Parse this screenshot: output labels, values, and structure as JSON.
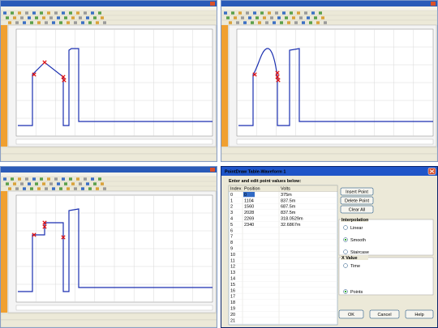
{
  "dialog": {
    "title": "PointDraw Table-Waveform 1",
    "instruction": "Enter and edit point values below:",
    "table": {
      "columns": [
        "Index",
        "Position",
        "Volts"
      ],
      "rows": [
        [
          "0",
          "0",
          "375m"
        ],
        [
          "1",
          "1104",
          "837.5m"
        ],
        [
          "2",
          "1560",
          "687.5m"
        ],
        [
          "3",
          "2028",
          "837.5m"
        ],
        [
          "4",
          "2269",
          "318.0529m"
        ],
        [
          "5",
          "2340",
          "32.6867m"
        ],
        [
          "6"
        ],
        [
          "7"
        ],
        [
          "8"
        ],
        [
          "9"
        ],
        [
          "10"
        ],
        [
          "11"
        ],
        [
          "12"
        ],
        [
          "13"
        ],
        [
          "14"
        ],
        [
          "15"
        ],
        [
          "16"
        ],
        [
          "17"
        ],
        [
          "18"
        ],
        [
          "19"
        ],
        [
          "20"
        ],
        [
          "21"
        ]
      ],
      "selected_cell": [
        0,
        1
      ]
    },
    "buttons": [
      "Insert Point",
      "Delete Point",
      "Clear All"
    ],
    "interpolation": {
      "label": "Interpolation",
      "options": [
        "Linear",
        "Smooth",
        "Staircase"
      ],
      "selected": 1
    },
    "x_value": {
      "label": "X Value",
      "options": [
        "Time",
        "Points"
      ],
      "selected": 1
    },
    "footer_buttons": [
      "OK",
      "Cancel",
      "Help"
    ]
  }
}
